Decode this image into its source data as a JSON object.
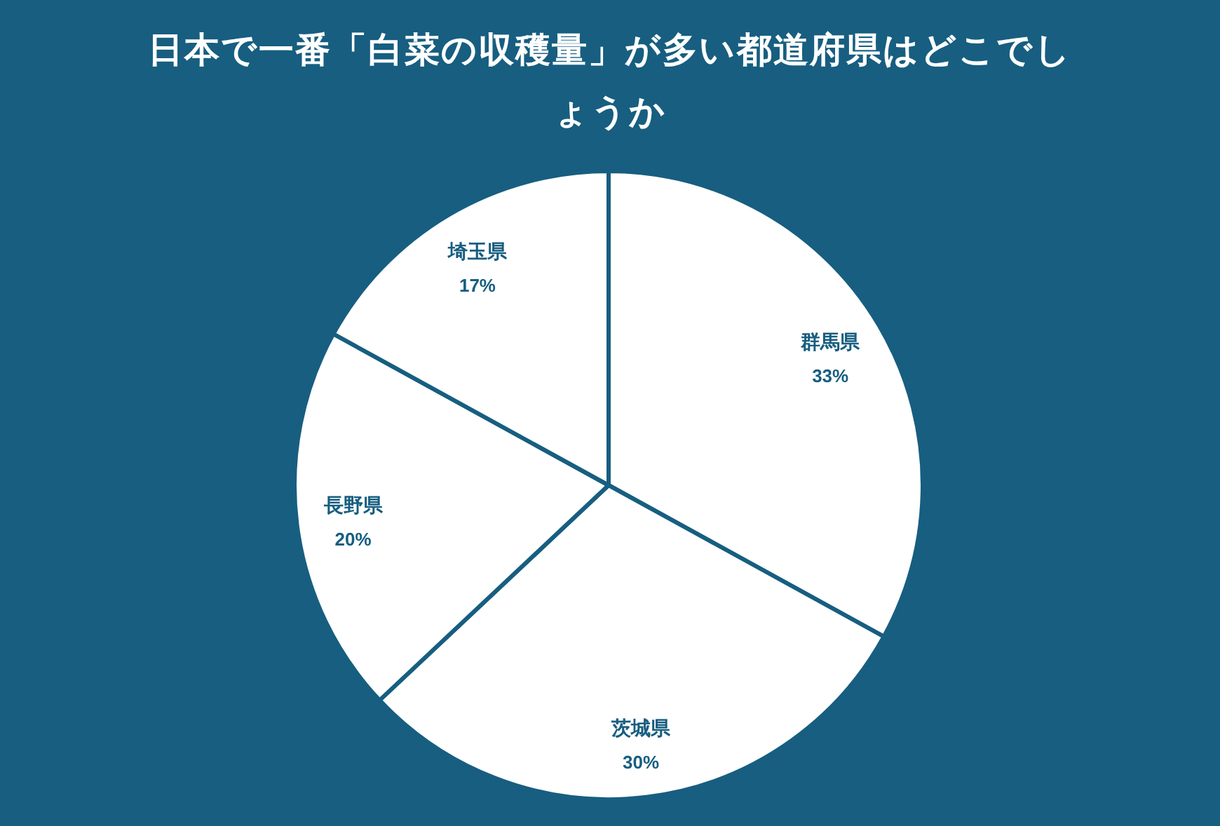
{
  "chart_data": {
    "type": "pie",
    "title": "日本で一番「白菜の収穫量」が多い都道府県はどこでしょうか",
    "categories": [
      "群馬県",
      "茨城県",
      "長野県",
      "埼玉県"
    ],
    "values": [
      33,
      30,
      20,
      17
    ],
    "colors": [
      "#ffffff",
      "#ffffff",
      "#ffffff",
      "#ffffff"
    ],
    "value_labels": [
      "33%",
      "30%",
      "20%",
      "17%"
    ]
  }
}
